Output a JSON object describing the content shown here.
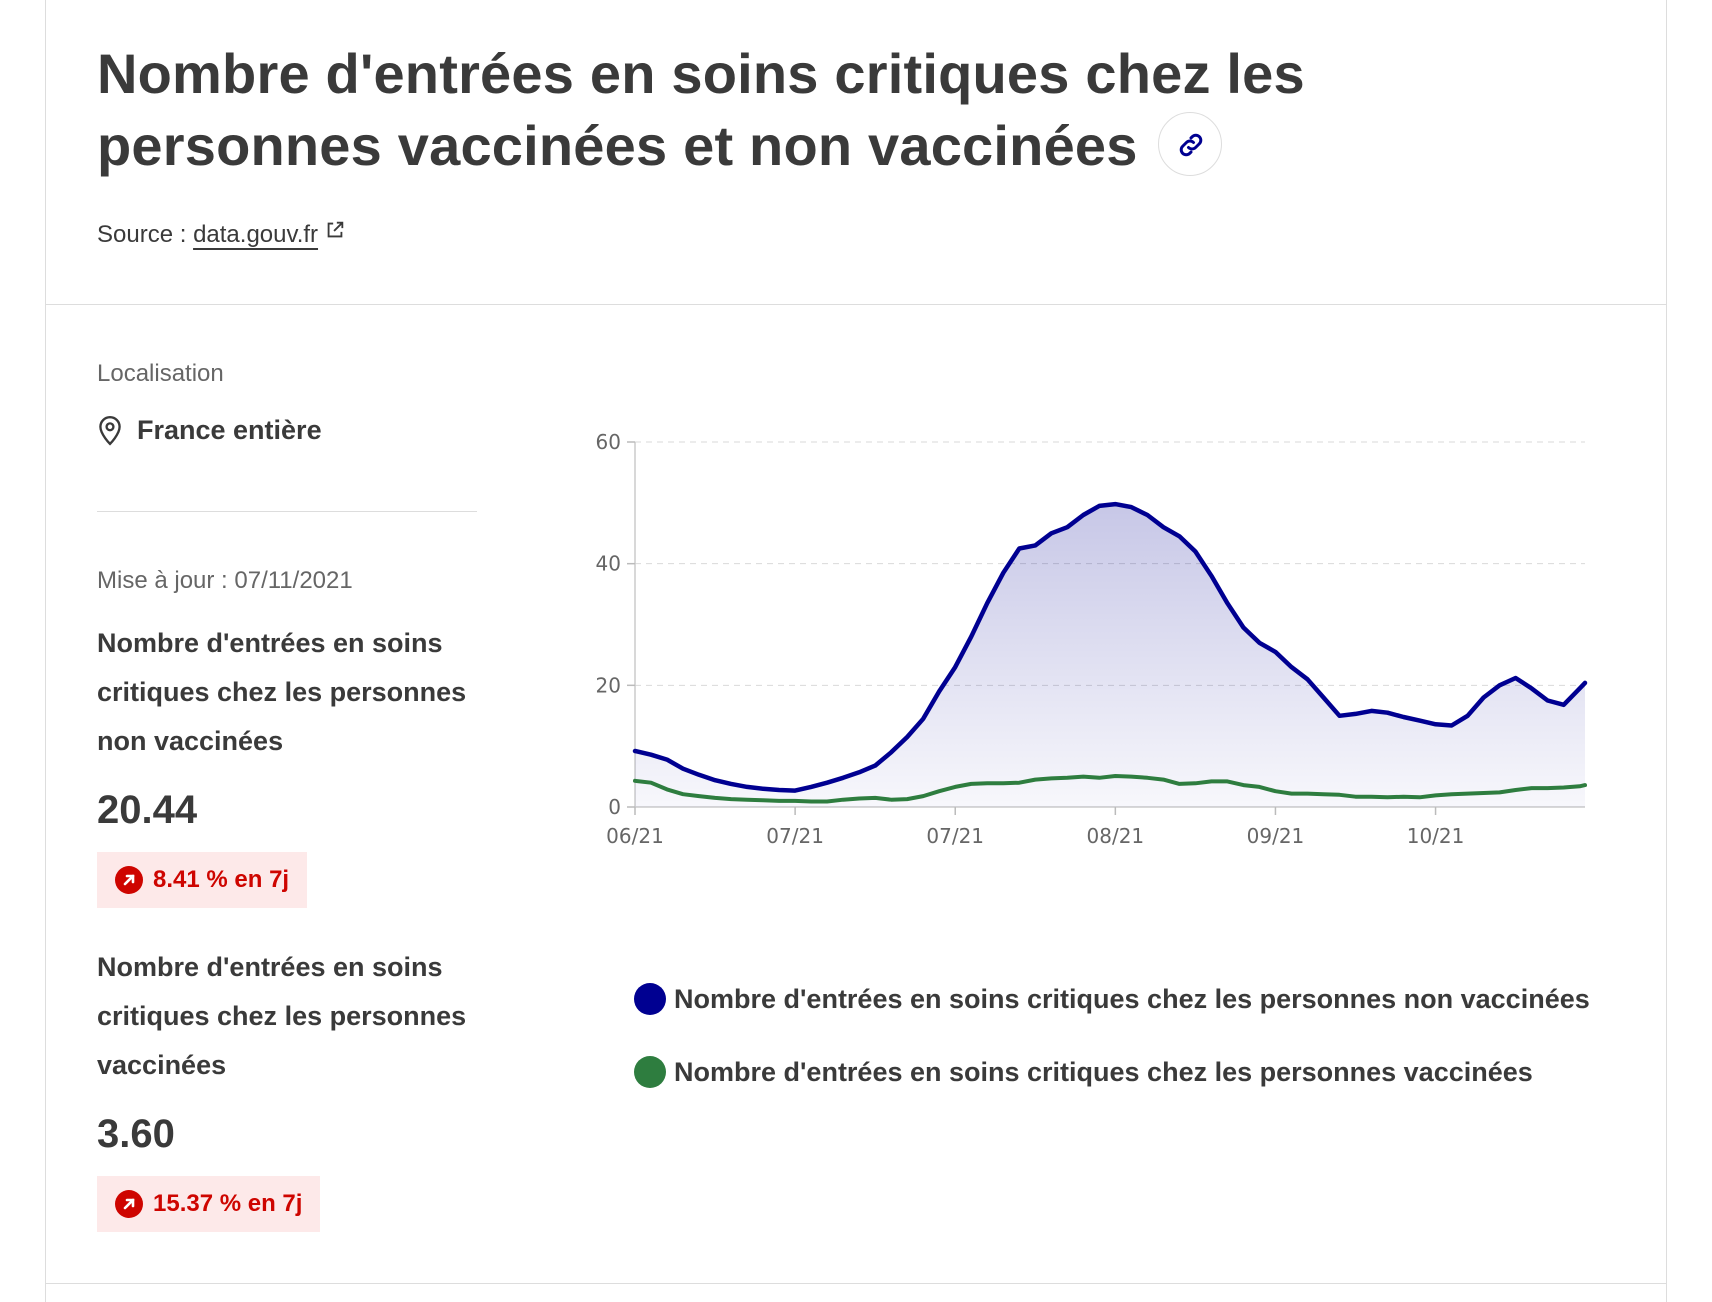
{
  "header": {
    "title": "Nombre d'entrées en soins critiques chez les personnes vaccinées et non vaccinées",
    "source_label": "Source :",
    "source_link": "data.gouv.fr"
  },
  "sidebar": {
    "location_label": "Localisation",
    "location_value": "France entière",
    "updated": "Mise à jour : 07/11/2021",
    "kpis": [
      {
        "label": "Nombre d'entrées en soins critiques chez les personnes non vaccinées",
        "value": "20.44",
        "change": "8.41 % en 7j"
      },
      {
        "label": "Nombre d'entrées en soins critiques chez les personnes vaccinées",
        "value": "3.60",
        "change": "15.37 % en 7j"
      }
    ]
  },
  "colors": {
    "unvaccinated": "#000091",
    "vaccinated": "#2e7d3f",
    "badge_text": "#ce0500",
    "badge_bg": "#fde9e9"
  },
  "icons": [
    "link-icon",
    "external-link-icon",
    "map-pin-icon",
    "trend-up-icon"
  ],
  "chart_data": {
    "type": "line",
    "x_tick_labels": [
      "06/21",
      "07/21",
      "07/21",
      "08/21",
      "09/21",
      "10/21"
    ],
    "x_tick_days": [
      0,
      30,
      60,
      90,
      120,
      150
    ],
    "ylim": [
      0,
      60
    ],
    "y_ticks": [
      0,
      20,
      40,
      60
    ],
    "grid": true,
    "legend_position": "bottom",
    "series": [
      {
        "name": "Nombre d'entrées en soins critiques chez les personnes non vaccinées",
        "color": "#000091",
        "area_fill": true,
        "points": [
          [
            0,
            9.2
          ],
          [
            3,
            8.6
          ],
          [
            6,
            7.8
          ],
          [
            9,
            6.3
          ],
          [
            12,
            5.3
          ],
          [
            15,
            4.4
          ],
          [
            18,
            3.8
          ],
          [
            21,
            3.3
          ],
          [
            24,
            3.0
          ],
          [
            27,
            2.8
          ],
          [
            30,
            2.7
          ],
          [
            33,
            3.3
          ],
          [
            36,
            4.0
          ],
          [
            39,
            4.8
          ],
          [
            42,
            5.7
          ],
          [
            45,
            6.8
          ],
          [
            48,
            9.0
          ],
          [
            51,
            11.5
          ],
          [
            54,
            14.5
          ],
          [
            57,
            19.0
          ],
          [
            60,
            23.0
          ],
          [
            63,
            28.0
          ],
          [
            66,
            33.5
          ],
          [
            69,
            38.5
          ],
          [
            72,
            42.5
          ],
          [
            75,
            43.0
          ],
          [
            78,
            45.0
          ],
          [
            81,
            46.0
          ],
          [
            84,
            48.0
          ],
          [
            87,
            49.5
          ],
          [
            90,
            49.8
          ],
          [
            93,
            49.3
          ],
          [
            96,
            48.0
          ],
          [
            99,
            46.0
          ],
          [
            102,
            44.5
          ],
          [
            105,
            42.0
          ],
          [
            108,
            38.0
          ],
          [
            111,
            33.5
          ],
          [
            114,
            29.5
          ],
          [
            117,
            27.0
          ],
          [
            120,
            25.5
          ],
          [
            123,
            23.0
          ],
          [
            126,
            21.0
          ],
          [
            129,
            18.0
          ],
          [
            132,
            15.0
          ],
          [
            135,
            15.3
          ],
          [
            138,
            15.8
          ],
          [
            141,
            15.5
          ],
          [
            144,
            14.8
          ],
          [
            147,
            14.2
          ],
          [
            150,
            13.6
          ],
          [
            153,
            13.4
          ],
          [
            156,
            15.0
          ],
          [
            159,
            18.0
          ],
          [
            162,
            20.0
          ],
          [
            165,
            21.2
          ],
          [
            168,
            19.5
          ],
          [
            171,
            17.5
          ],
          [
            174,
            16.8
          ],
          [
            177,
            19.5
          ],
          [
            178,
            20.4
          ]
        ]
      },
      {
        "name": "Nombre d'entrées en soins critiques chez les personnes vaccinées",
        "color": "#2e7d3f",
        "area_fill": false,
        "points": [
          [
            0,
            4.3
          ],
          [
            3,
            4.0
          ],
          [
            6,
            2.9
          ],
          [
            9,
            2.1
          ],
          [
            12,
            1.8
          ],
          [
            15,
            1.5
          ],
          [
            18,
            1.3
          ],
          [
            21,
            1.2
          ],
          [
            24,
            1.1
          ],
          [
            27,
            1.0
          ],
          [
            30,
            1.0
          ],
          [
            33,
            0.9
          ],
          [
            36,
            0.9
          ],
          [
            39,
            1.2
          ],
          [
            42,
            1.4
          ],
          [
            45,
            1.5
          ],
          [
            48,
            1.2
          ],
          [
            51,
            1.3
          ],
          [
            54,
            1.8
          ],
          [
            57,
            2.6
          ],
          [
            60,
            3.3
          ],
          [
            63,
            3.8
          ],
          [
            66,
            3.9
          ],
          [
            69,
            3.9
          ],
          [
            72,
            4.0
          ],
          [
            75,
            4.5
          ],
          [
            78,
            4.7
          ],
          [
            81,
            4.8
          ],
          [
            84,
            5.0
          ],
          [
            87,
            4.8
          ],
          [
            90,
            5.1
          ],
          [
            93,
            5.0
          ],
          [
            96,
            4.8
          ],
          [
            99,
            4.5
          ],
          [
            102,
            3.8
          ],
          [
            105,
            3.9
          ],
          [
            108,
            4.2
          ],
          [
            111,
            4.2
          ],
          [
            114,
            3.6
          ],
          [
            117,
            3.3
          ],
          [
            120,
            2.6
          ],
          [
            123,
            2.2
          ],
          [
            126,
            2.2
          ],
          [
            129,
            2.1
          ],
          [
            132,
            2.0
          ],
          [
            135,
            1.7
          ],
          [
            138,
            1.7
          ],
          [
            141,
            1.6
          ],
          [
            144,
            1.7
          ],
          [
            147,
            1.6
          ],
          [
            150,
            1.9
          ],
          [
            153,
            2.1
          ],
          [
            156,
            2.2
          ],
          [
            159,
            2.3
          ],
          [
            162,
            2.4
          ],
          [
            165,
            2.8
          ],
          [
            168,
            3.1
          ],
          [
            171,
            3.1
          ],
          [
            174,
            3.2
          ],
          [
            177,
            3.4
          ],
          [
            178,
            3.6
          ]
        ]
      }
    ]
  }
}
